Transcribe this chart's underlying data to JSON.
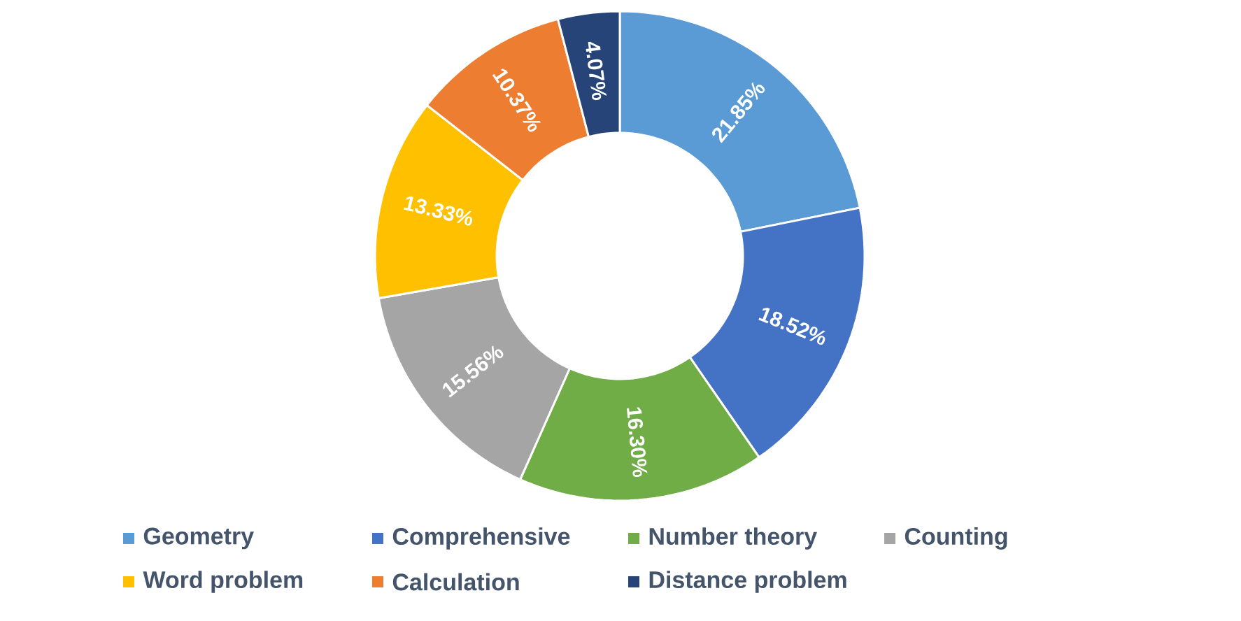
{
  "chart_data": {
    "type": "donut",
    "categories": [
      "Geometry",
      "Comprehensive",
      "Number theory",
      "Counting",
      "Word problem",
      "Calculation",
      "Distance problem"
    ],
    "values": [
      21.85,
      18.52,
      16.3,
      15.56,
      13.33,
      10.37,
      4.07
    ],
    "colors": [
      "#5b9bd5",
      "#4472c4",
      "#70ad47",
      "#a5a5a5",
      "#ffc000",
      "#ed7d31",
      "#264478"
    ],
    "value_labels": [
      "21.85%",
      "18.52%",
      "16.30%",
      "15.56%",
      "13.33%",
      "10.37%",
      "4.07%"
    ],
    "legend": "bottom"
  }
}
